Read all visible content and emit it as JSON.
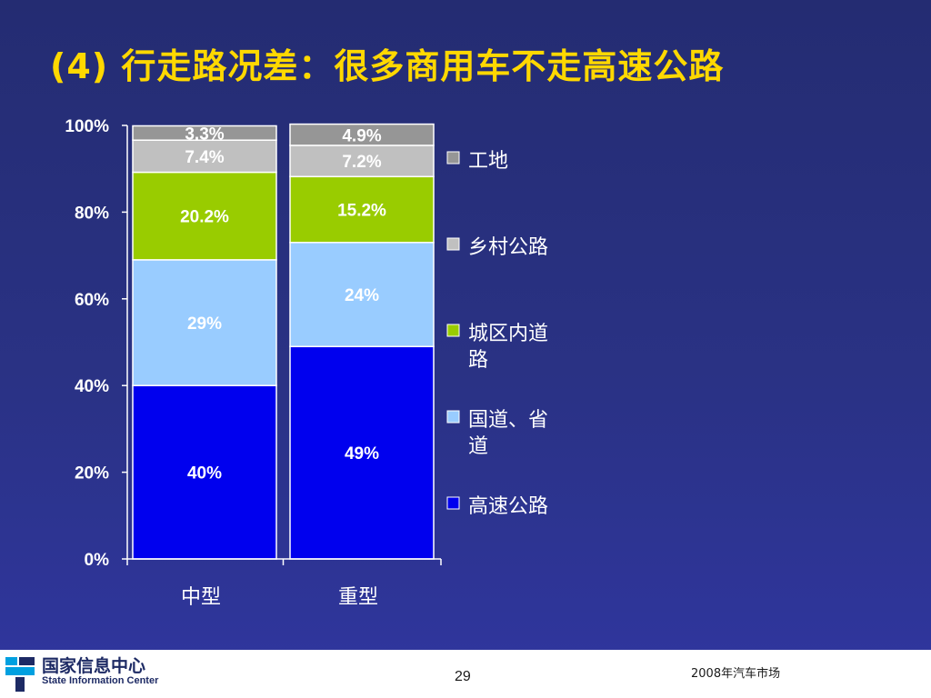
{
  "slide": {
    "title": "(4) 行走路况差：很多商用车不走高速公路",
    "background_color": "#2a3285",
    "title_color": "#ffd800"
  },
  "chart_data": {
    "type": "bar",
    "stacked": true,
    "categories": [
      "中型",
      "重型"
    ],
    "series": [
      {
        "name": "高速公路",
        "values": [
          40,
          49
        ],
        "labels": [
          "40%",
          "49%"
        ],
        "color": "#0000ee",
        "label_color": "#ffffff"
      },
      {
        "name": "国道、省道",
        "values": [
          29,
          24
        ],
        "labels": [
          "29%",
          "24%"
        ],
        "color": "#99ccff",
        "label_color": "#ffffff"
      },
      {
        "name": "城区内道路",
        "values": [
          20.2,
          15.2
        ],
        "labels": [
          "20.2%",
          "15.2%"
        ],
        "color": "#99cc00",
        "label_color": "#ffffff"
      },
      {
        "name": "乡村公路",
        "values": [
          7.4,
          7.2
        ],
        "labels": [
          "7.4%",
          "7.2%"
        ],
        "color": "#c0c0c0",
        "label_color": "#ffffff"
      },
      {
        "name": "工地",
        "values": [
          3.3,
          4.9
        ],
        "labels": [
          "3.3%",
          "4.9%"
        ],
        "color": "#969696",
        "label_color": "#ffffff"
      }
    ],
    "y_ticks": [
      "0%",
      "20%",
      "40%",
      "60%",
      "80%",
      "100%"
    ],
    "ylim": [
      0,
      100
    ],
    "grid": false,
    "legend": {
      "position": "right",
      "entries": [
        {
          "series": "工地",
          "lines": [
            "工地"
          ]
        },
        {
          "series": "乡村公路",
          "lines": [
            "乡村公路"
          ]
        },
        {
          "series": "城区内道路",
          "lines": [
            "城区内道",
            "路"
          ]
        },
        {
          "series": "国道、省道",
          "lines": [
            "国道、省",
            "道"
          ]
        },
        {
          "series": "高速公路",
          "lines": [
            "高速公路"
          ]
        }
      ]
    }
  },
  "footer": {
    "org_name_cn": "国家信息中心",
    "org_name_en": "State Information Center",
    "page_number": "29",
    "right_text": "2008年汽车市场"
  }
}
